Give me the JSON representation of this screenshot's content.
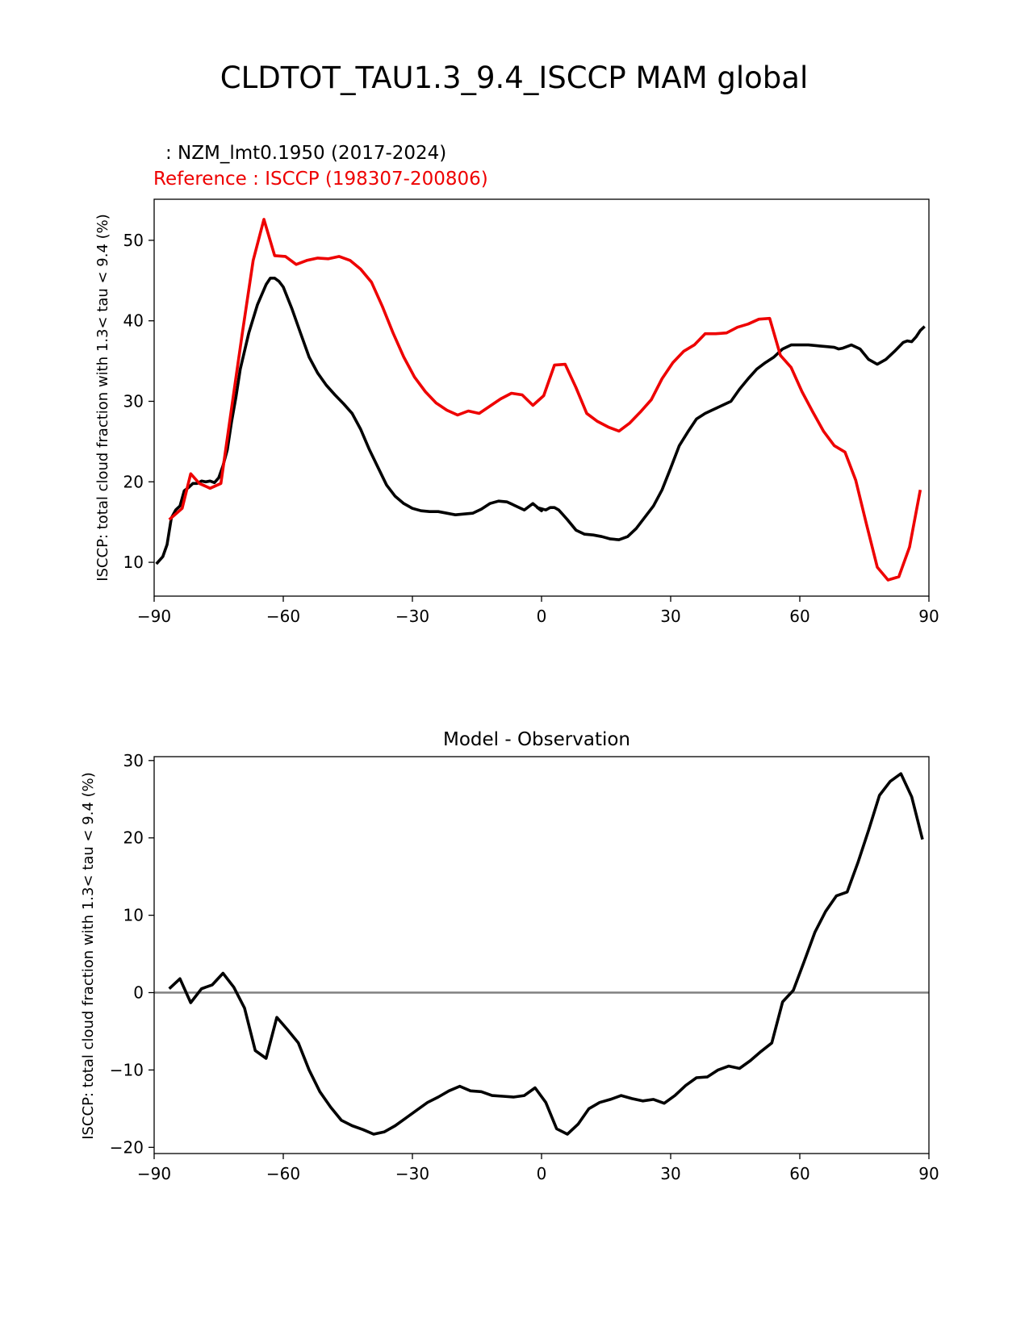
{
  "title": "CLDTOT_TAU1.3_9.4_ISCCP MAM global",
  "colors": {
    "model": "#000000",
    "reference": "#ee0000",
    "zero_line": "#808080",
    "axes": "#000000"
  },
  "chart_data": [
    {
      "type": "line",
      "model_label": " : NZM_lmt0.1950 (2017-2024)",
      "reference_label": "Reference : ISCCP (198307-200806)",
      "ylabel": "ISCCP: total cloud fraction with 1.3< tau < 9.4 (%)",
      "xlim": [
        -90,
        90
      ],
      "ylim": [
        5.8,
        55.1
      ],
      "xticks": [
        -90,
        -60,
        -30,
        0,
        30,
        60,
        90
      ],
      "xtick_labels": [
        "−90",
        "−60",
        "−30",
        "0",
        "30",
        "60",
        "90"
      ],
      "yticks": [
        10,
        20,
        30,
        40,
        50
      ],
      "ytick_labels": [
        "10",
        "20",
        "30",
        "40",
        "50"
      ],
      "series": [
        {
          "name": "NZM_lmt0.1950",
          "color": "#000000",
          "x": [
            -89.5,
            -88,
            -87,
            -86,
            -85,
            -84,
            -83,
            -82,
            -81,
            -80,
            -79,
            -78,
            -77,
            -76,
            -75,
            -74,
            -73,
            -72,
            -71,
            -70,
            -68,
            -66,
            -64,
            -63,
            -62,
            -61,
            -60,
            -58,
            -56,
            -54,
            -52,
            -50,
            -48,
            -46,
            -44,
            -42,
            -40,
            -38,
            -36,
            -34,
            -32,
            -30,
            -28,
            -26,
            -24,
            -22,
            -20,
            -18,
            -16,
            -14,
            -12,
            -10,
            -8,
            -6,
            -4,
            -2,
            0,
            -1,
            1,
            2,
            3,
            4,
            5,
            6,
            8,
            10,
            12,
            14,
            16,
            18,
            20,
            22,
            24,
            26,
            28,
            30,
            32,
            34,
            36,
            38,
            40,
            42,
            44,
            46,
            48,
            50,
            52,
            54,
            56,
            58,
            60,
            62,
            64,
            66,
            68,
            69,
            70,
            72,
            74,
            76,
            78,
            80,
            82,
            84,
            85,
            86,
            87,
            88,
            89
          ],
          "values": [
            9.8,
            10.7,
            12.2,
            15.5,
            16.5,
            17.0,
            18.9,
            19.3,
            19.8,
            19.8,
            20.1,
            20.0,
            20.1,
            19.9,
            20.5,
            22.0,
            24.0,
            27.5,
            30.5,
            34.0,
            38.5,
            42.0,
            44.5,
            45.3,
            45.3,
            44.9,
            44.2,
            41.5,
            38.5,
            35.5,
            33.5,
            32.0,
            30.8,
            29.7,
            28.5,
            26.5,
            24.0,
            21.8,
            19.6,
            18.2,
            17.3,
            16.7,
            16.4,
            16.3,
            16.3,
            16.1,
            15.9,
            16.0,
            16.1,
            16.6,
            17.3,
            17.6,
            17.5,
            17.0,
            16.5,
            17.3,
            16.4,
            16.8,
            16.5,
            16.8,
            16.8,
            16.5,
            15.9,
            15.3,
            14.0,
            13.5,
            13.4,
            13.2,
            12.9,
            12.8,
            13.2,
            14.2,
            15.6,
            17.0,
            19.0,
            21.7,
            24.5,
            26.2,
            27.8,
            28.5,
            29.0,
            29.5,
            30.0,
            31.5,
            32.8,
            34.0,
            34.8,
            35.5,
            36.5,
            37.0,
            37.0,
            37.0,
            36.9,
            36.8,
            36.7,
            36.5,
            36.6,
            37.0,
            36.5,
            35.2,
            34.6,
            35.2,
            36.2,
            37.3,
            37.5,
            37.4,
            38.0,
            38.8,
            39.3
          ]
        },
        {
          "name": "ISCCP",
          "color": "#ee0000",
          "x": [
            -86.5,
            -83.5,
            -81.5,
            -79.5,
            -77,
            -74.5,
            -72,
            -69.5,
            -67,
            -64.5,
            -62,
            -59.5,
            -57,
            -54.5,
            -52,
            -49.5,
            -47,
            -44.5,
            -42,
            -39.5,
            -37,
            -34.5,
            -32,
            -29.5,
            -27,
            -24.5,
            -22,
            -19.5,
            -17,
            -14.5,
            -12,
            -9.5,
            -7,
            -4.5,
            -2,
            0.5,
            3,
            5.5,
            8,
            10.5,
            13,
            15.5,
            18,
            20.5,
            23,
            25.5,
            28,
            30.5,
            33,
            35.5,
            38,
            40.5,
            43,
            45.5,
            48,
            50.5,
            53,
            55.5,
            58,
            60.5,
            63,
            65.5,
            68,
            70.5,
            73,
            75.5,
            78,
            80.5,
            83,
            85.5,
            88
          ],
          "values": [
            15.3,
            16.7,
            21.0,
            19.8,
            19.2,
            19.8,
            29.2,
            38.5,
            47.5,
            52.6,
            48.1,
            48.0,
            47.0,
            47.5,
            47.8,
            47.7,
            48.0,
            47.5,
            46.4,
            44.8,
            41.8,
            38.5,
            35.5,
            33.0,
            31.2,
            29.8,
            28.9,
            28.3,
            28.8,
            28.5,
            29.4,
            30.3,
            31.0,
            30.8,
            29.5,
            30.7,
            34.5,
            34.6,
            31.7,
            28.5,
            27.5,
            26.8,
            26.3,
            27.3,
            28.7,
            30.2,
            32.8,
            34.8,
            36.2,
            37.0,
            38.4,
            38.4,
            38.5,
            39.2,
            39.6,
            40.2,
            40.3,
            35.7,
            34.2,
            31.2,
            28.7,
            26.3,
            24.5,
            23.7,
            20.2,
            14.7,
            9.4,
            7.8,
            8.2,
            11.9,
            19.0
          ]
        }
      ]
    },
    {
      "type": "line",
      "title": "Model - Observation",
      "ylabel": "ISCCP: total cloud fraction with 1.3< tau < 9.4 (%)",
      "xlim": [
        -90,
        90
      ],
      "ylim": [
        -20.8,
        30.5
      ],
      "xticks": [
        -90,
        -60,
        -30,
        0,
        30,
        60,
        90
      ],
      "xtick_labels": [
        "−90",
        "−60",
        "−30",
        "0",
        "30",
        "60",
        "90"
      ],
      "yticks": [
        -20,
        -10,
        0,
        10,
        20,
        30
      ],
      "ytick_labels": [
        "−20",
        "−10",
        "0",
        "10",
        "20",
        "30"
      ],
      "zero_line": true,
      "series": [
        {
          "name": "Model - Observation",
          "color": "#000000",
          "x": [
            -86.5,
            -84,
            -81.5,
            -79,
            -76.5,
            -74,
            -71.5,
            -69,
            -66.5,
            -64,
            -61.5,
            -59,
            -56.5,
            -54,
            -51.5,
            -49,
            -46.5,
            -44,
            -41.5,
            -39,
            -36.5,
            -34,
            -31.5,
            -29,
            -26.5,
            -24,
            -21.5,
            -19,
            -16.5,
            -14,
            -11.5,
            -9,
            -6.5,
            -4,
            -1.5,
            1,
            3.5,
            6,
            8.5,
            11,
            13.5,
            16,
            18.5,
            21,
            23.5,
            26,
            28.5,
            31,
            33.5,
            36,
            38.5,
            41,
            43.5,
            46,
            48.5,
            51,
            53.5,
            56,
            58.5,
            61,
            63.5,
            66,
            68.5,
            71,
            73.5,
            76,
            78.5,
            81,
            83.5,
            86,
            88.5
          ],
          "values": [
            0.5,
            1.8,
            -1.3,
            0.5,
            1.0,
            2.5,
            0.7,
            -2.0,
            -7.5,
            -8.5,
            -3.2,
            -4.8,
            -6.5,
            -10.0,
            -12.8,
            -14.8,
            -16.5,
            -17.2,
            -17.7,
            -18.3,
            -18.0,
            -17.2,
            -16.2,
            -15.2,
            -14.2,
            -13.5,
            -12.7,
            -12.1,
            -12.7,
            -12.8,
            -13.3,
            -13.4,
            -13.5,
            -13.3,
            -12.3,
            -14.2,
            -17.6,
            -18.3,
            -17.0,
            -15.0,
            -14.2,
            -13.8,
            -13.3,
            -13.7,
            -14.0,
            -13.8,
            -14.3,
            -13.3,
            -12.0,
            -11.0,
            -10.9,
            -10.0,
            -9.5,
            -9.8,
            -8.8,
            -7.6,
            -6.5,
            -1.2,
            0.3,
            4.0,
            7.8,
            10.5,
            12.5,
            13.0,
            16.8,
            21.0,
            25.5,
            27.3,
            28.3,
            25.3,
            19.8
          ]
        }
      ]
    }
  ]
}
